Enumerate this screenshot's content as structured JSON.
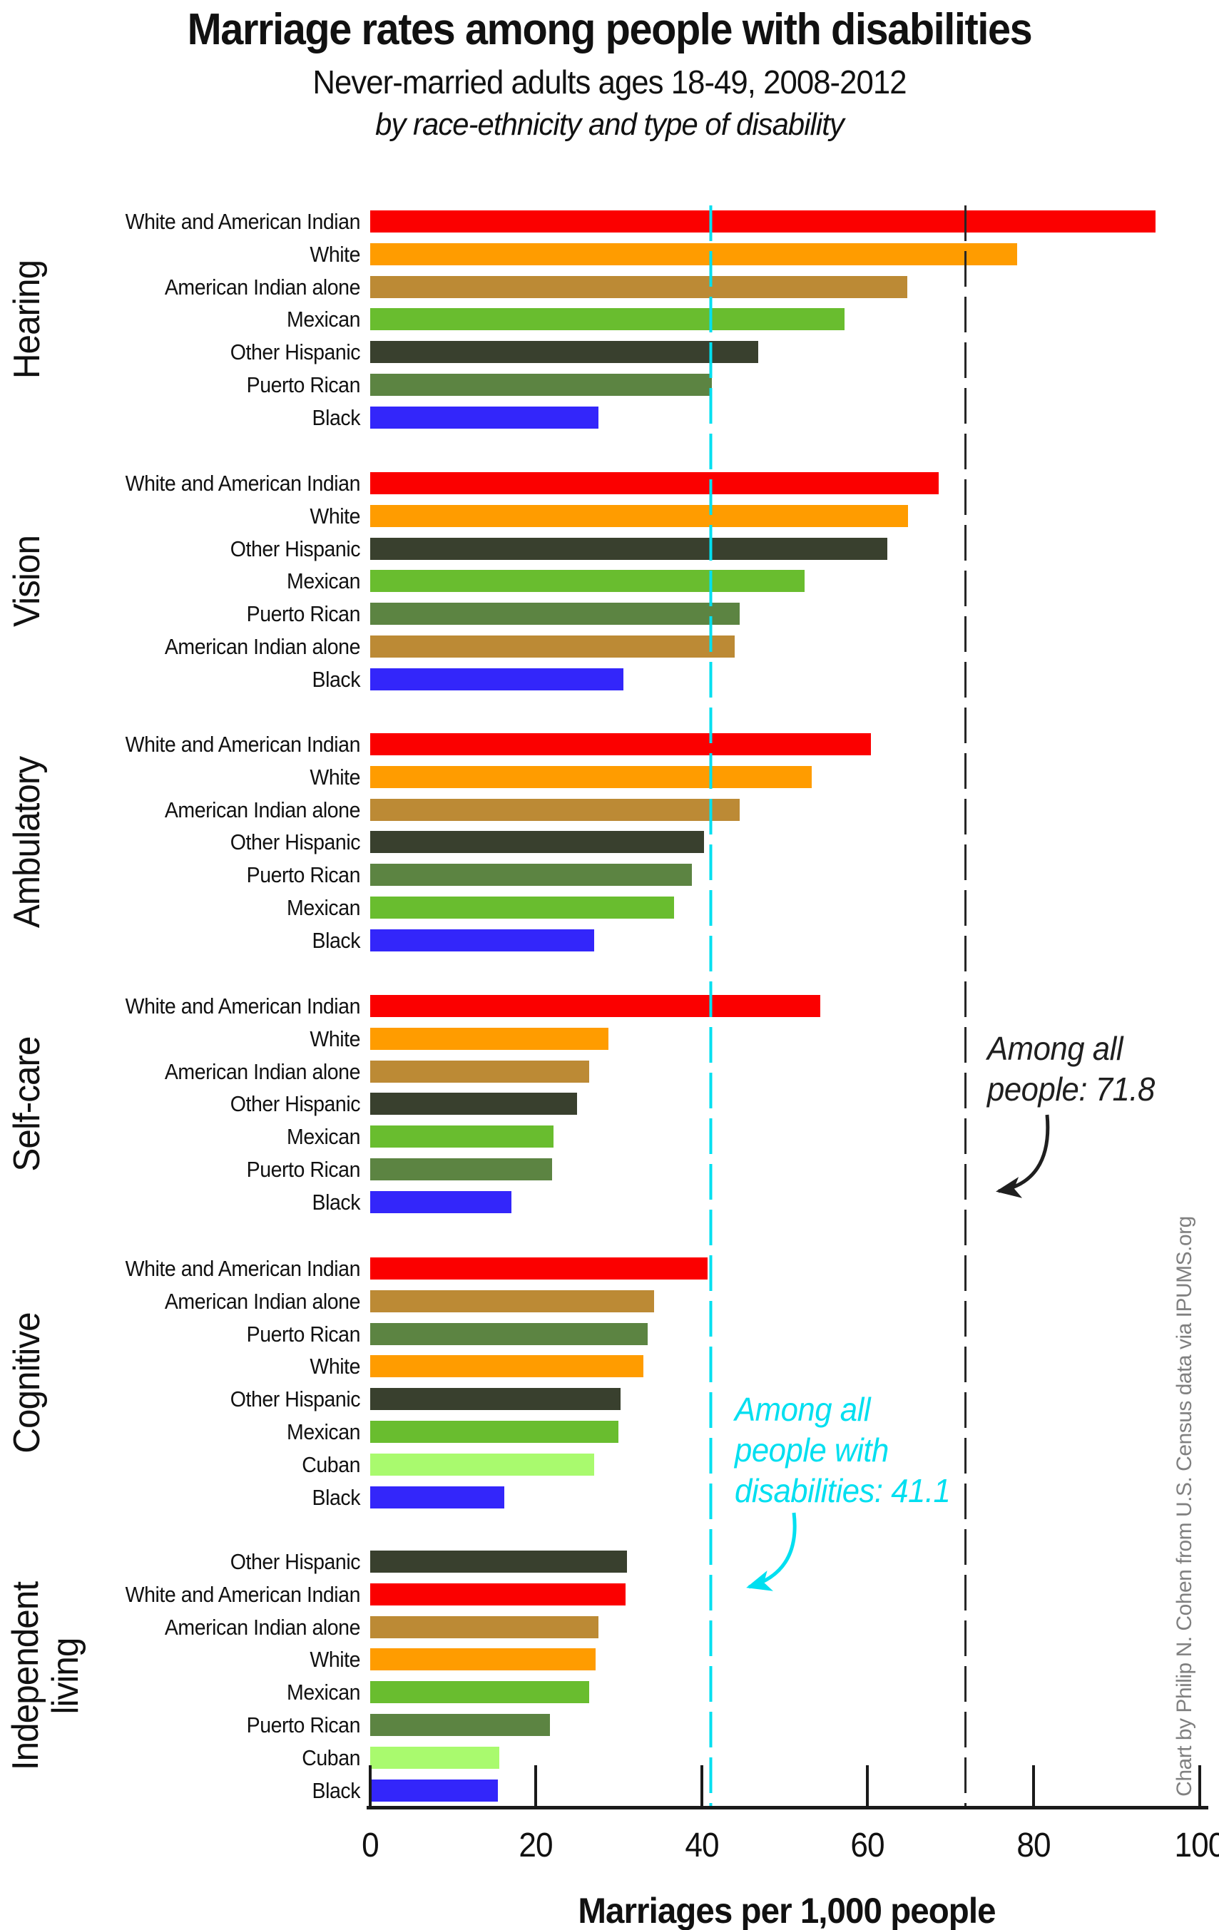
{
  "chart_data": {
    "type": "bar",
    "orientation": "horizontal",
    "title": "Marriage rates among people with disabilities",
    "subtitle": "Never-married adults ages 18-49, 2008-2012",
    "subtitle2": "by race-ethnicity and type of disability",
    "xlabel": "Marriages per 1,000 people",
    "xlim": [
      0,
      100
    ],
    "xticks": [
      0,
      20,
      40,
      60,
      80,
      100
    ],
    "grid": false,
    "legend": "none",
    "palette": {
      "White and American Indian": "#fb0000",
      "White": "#ff9c00",
      "American Indian alone": "#bc8a35",
      "Mexican": "#69bd2f",
      "Other Hispanic": "#39402e",
      "Puerto Rican": "#5c8442",
      "Cuban": "#a9fa6e",
      "Black": "#3326fa"
    },
    "groups": [
      {
        "name": "Hearing",
        "name_lines": [
          "Hearing"
        ],
        "bars": [
          {
            "category": "White and American Indian",
            "value": 94.7
          },
          {
            "category": "White",
            "value": 78.0
          },
          {
            "category": "American Indian alone",
            "value": 64.8
          },
          {
            "category": "Mexican",
            "value": 57.2
          },
          {
            "category": "Other Hispanic",
            "value": 46.8
          },
          {
            "category": "Puerto Rican",
            "value": 41.2
          },
          {
            "category": "Black",
            "value": 27.6
          }
        ]
      },
      {
        "name": "Vision",
        "name_lines": [
          "Vision"
        ],
        "bars": [
          {
            "category": "White and American Indian",
            "value": 68.6
          },
          {
            "category": "White",
            "value": 64.9
          },
          {
            "category": "Other Hispanic",
            "value": 62.4
          },
          {
            "category": "Mexican",
            "value": 52.4
          },
          {
            "category": "Puerto Rican",
            "value": 44.6
          },
          {
            "category": "American Indian alone",
            "value": 44.0
          },
          {
            "category": "Black",
            "value": 30.6
          }
        ]
      },
      {
        "name": "Ambulatory",
        "name_lines": [
          "Ambulatory"
        ],
        "bars": [
          {
            "category": "White and American Indian",
            "value": 60.4
          },
          {
            "category": "White",
            "value": 53.3
          },
          {
            "category": "American Indian alone",
            "value": 44.6
          },
          {
            "category": "Other Hispanic",
            "value": 40.3
          },
          {
            "category": "Puerto Rican",
            "value": 38.8
          },
          {
            "category": "Mexican",
            "value": 36.7
          },
          {
            "category": "Black",
            "value": 27.0
          }
        ]
      },
      {
        "name": "Self-care",
        "name_lines": [
          "Self-care"
        ],
        "bars": [
          {
            "category": "White and American Indian",
            "value": 54.3
          },
          {
            "category": "White",
            "value": 28.8
          },
          {
            "category": "American Indian alone",
            "value": 26.4
          },
          {
            "category": "Other Hispanic",
            "value": 25.0
          },
          {
            "category": "Mexican",
            "value": 22.1
          },
          {
            "category": "Puerto Rican",
            "value": 22.0
          },
          {
            "category": "Black",
            "value": 17.1
          }
        ]
      },
      {
        "name": "Cognitive",
        "name_lines": [
          "Cognitive"
        ],
        "bars": [
          {
            "category": "White and American Indian",
            "value": 40.7
          },
          {
            "category": "American Indian alone",
            "value": 34.3
          },
          {
            "category": "Puerto Rican",
            "value": 33.5
          },
          {
            "category": "White",
            "value": 33.0
          },
          {
            "category": "Other Hispanic",
            "value": 30.2
          },
          {
            "category": "Mexican",
            "value": 30.0
          },
          {
            "category": "Cuban",
            "value": 27.0
          },
          {
            "category": "Black",
            "value": 16.2
          }
        ]
      },
      {
        "name": "Independent living",
        "name_lines": [
          "Independent",
          "living"
        ],
        "bars": [
          {
            "category": "Other Hispanic",
            "value": 31.0
          },
          {
            "category": "White and American Indian",
            "value": 30.8
          },
          {
            "category": "American Indian alone",
            "value": 27.6
          },
          {
            "category": "White",
            "value": 27.2
          },
          {
            "category": "Mexican",
            "value": 26.4
          },
          {
            "category": "Puerto Rican",
            "value": 21.7
          },
          {
            "category": "Cuban",
            "value": 15.6
          },
          {
            "category": "Black",
            "value": 15.4
          }
        ]
      }
    ],
    "reference_lines": [
      {
        "id": "all-people",
        "value": 71.8,
        "color": "#262626",
        "label_lines": [
          "Among all",
          "people: 71.8"
        ]
      },
      {
        "id": "all-disabilities",
        "value": 41.1,
        "color": "#00dff0",
        "label_lines": [
          "Among all",
          "people with",
          "disabilities: 41.1"
        ]
      }
    ],
    "credit": "Chart by Philip N. Cohen from U.S. Census data via IPUMS.org"
  }
}
